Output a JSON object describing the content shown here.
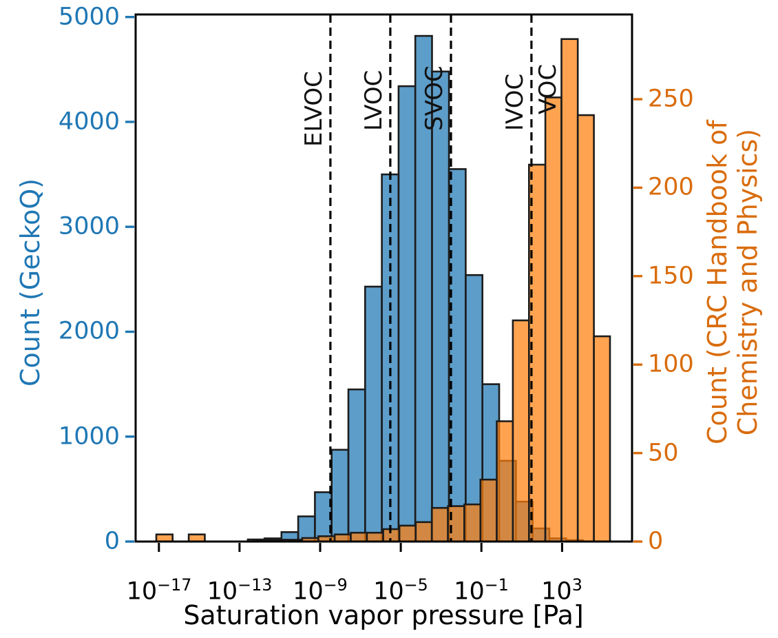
{
  "chart_data": {
    "type": "bar",
    "subtype": "overlaid-histograms-log-x-dual-y",
    "title": "",
    "xlabel": "Saturation vapor pressure [Pa]",
    "x_axis": {
      "scale": "log10",
      "range_log10": [
        -18.15,
        6.44
      ],
      "tick_exponents": [
        -17,
        -13,
        -9,
        -5,
        -1,
        3
      ],
      "tick_base": "10"
    },
    "y_left": {
      "label": "Count (GeckoQ)",
      "color": "#1f77b4",
      "ticks": [
        0,
        1000,
        2000,
        3000,
        4000,
        5000
      ],
      "range": [
        0,
        5024
      ],
      "grid": false
    },
    "y_right": {
      "label_line1": "Count (CRC Handbook of",
      "label_line2": "Chemistry and Physics)",
      "color": "#d96c0d",
      "ticks": [
        0,
        50,
        100,
        150,
        200,
        250
      ],
      "range": [
        0,
        297.9
      ],
      "grid": false
    },
    "series": [
      {
        "id": "geckoq",
        "name": "GeckoQ",
        "axis": "left",
        "color": "#1f77b4",
        "fill_alpha": 0.72,
        "bin_edges_log10_pa": [
          -12.59,
          -11.76,
          -10.92,
          -10.09,
          -9.26,
          -8.43,
          -7.6,
          -6.77,
          -5.94,
          -5.11,
          -4.28,
          -3.45,
          -2.61,
          -1.78,
          -0.95,
          -0.12,
          0.71,
          1.54,
          2.37,
          3.2,
          4.03
        ],
        "counts": [
          20,
          30,
          90,
          240,
          470,
          875,
          1450,
          2430,
          3500,
          4340,
          4820,
          4480,
          3550,
          2540,
          1500,
          770,
          380,
          125,
          30,
          13
        ]
      },
      {
        "id": "crc",
        "name": "CRC Handbook of Chemistry and Physics",
        "axis": "right",
        "color": "#ff7f0e",
        "fill_alpha": 0.72,
        "bin_edges_log10_pa": [
          -17.13,
          -16.32,
          -15.52,
          -14.72,
          -13.91,
          -13.11,
          -12.3,
          -11.5,
          -10.7,
          -9.89,
          -9.09,
          -8.28,
          -7.48,
          -6.68,
          -5.87,
          -5.07,
          -4.26,
          -3.46,
          -2.66,
          -1.85,
          -1.05,
          -0.24,
          0.56,
          1.36,
          2.17,
          2.97,
          3.78,
          4.58,
          5.38
        ],
        "counts": [
          4,
          0,
          4,
          0,
          0,
          0,
          1,
          1,
          1,
          2,
          3,
          4,
          5,
          5,
          7,
          9,
          11,
          19,
          20,
          21,
          35,
          68,
          125,
          213,
          251,
          284,
          241,
          116
        ]
      }
    ],
    "class_lines": [
      {
        "label": "ELVOC",
        "log10_pa": -8.49
      },
      {
        "label": "LVOC",
        "log10_pa": -5.52
      },
      {
        "label": "SVOC",
        "log10_pa": -2.51
      },
      {
        "label": "IVOC",
        "log10_pa": 1.48
      }
    ],
    "class_labels": [
      {
        "text": "ELVOC",
        "line_index": 0,
        "side": "left"
      },
      {
        "text": "LVOC",
        "line_index": 1,
        "side": "left"
      },
      {
        "text": "SVOC",
        "line_index": 2,
        "side": "left"
      },
      {
        "text": "IVOC",
        "line_index": 3,
        "side": "left"
      },
      {
        "text": "VOC",
        "line_index": 3,
        "side": "right"
      }
    ],
    "style": {
      "bar_edge_color": "#1c1c1c",
      "bar_edge_width": 2.6,
      "threshold_line_color": "#000000",
      "threshold_dash": [
        12,
        7
      ],
      "spine_color": "#000000",
      "background": "#ffffff"
    }
  }
}
